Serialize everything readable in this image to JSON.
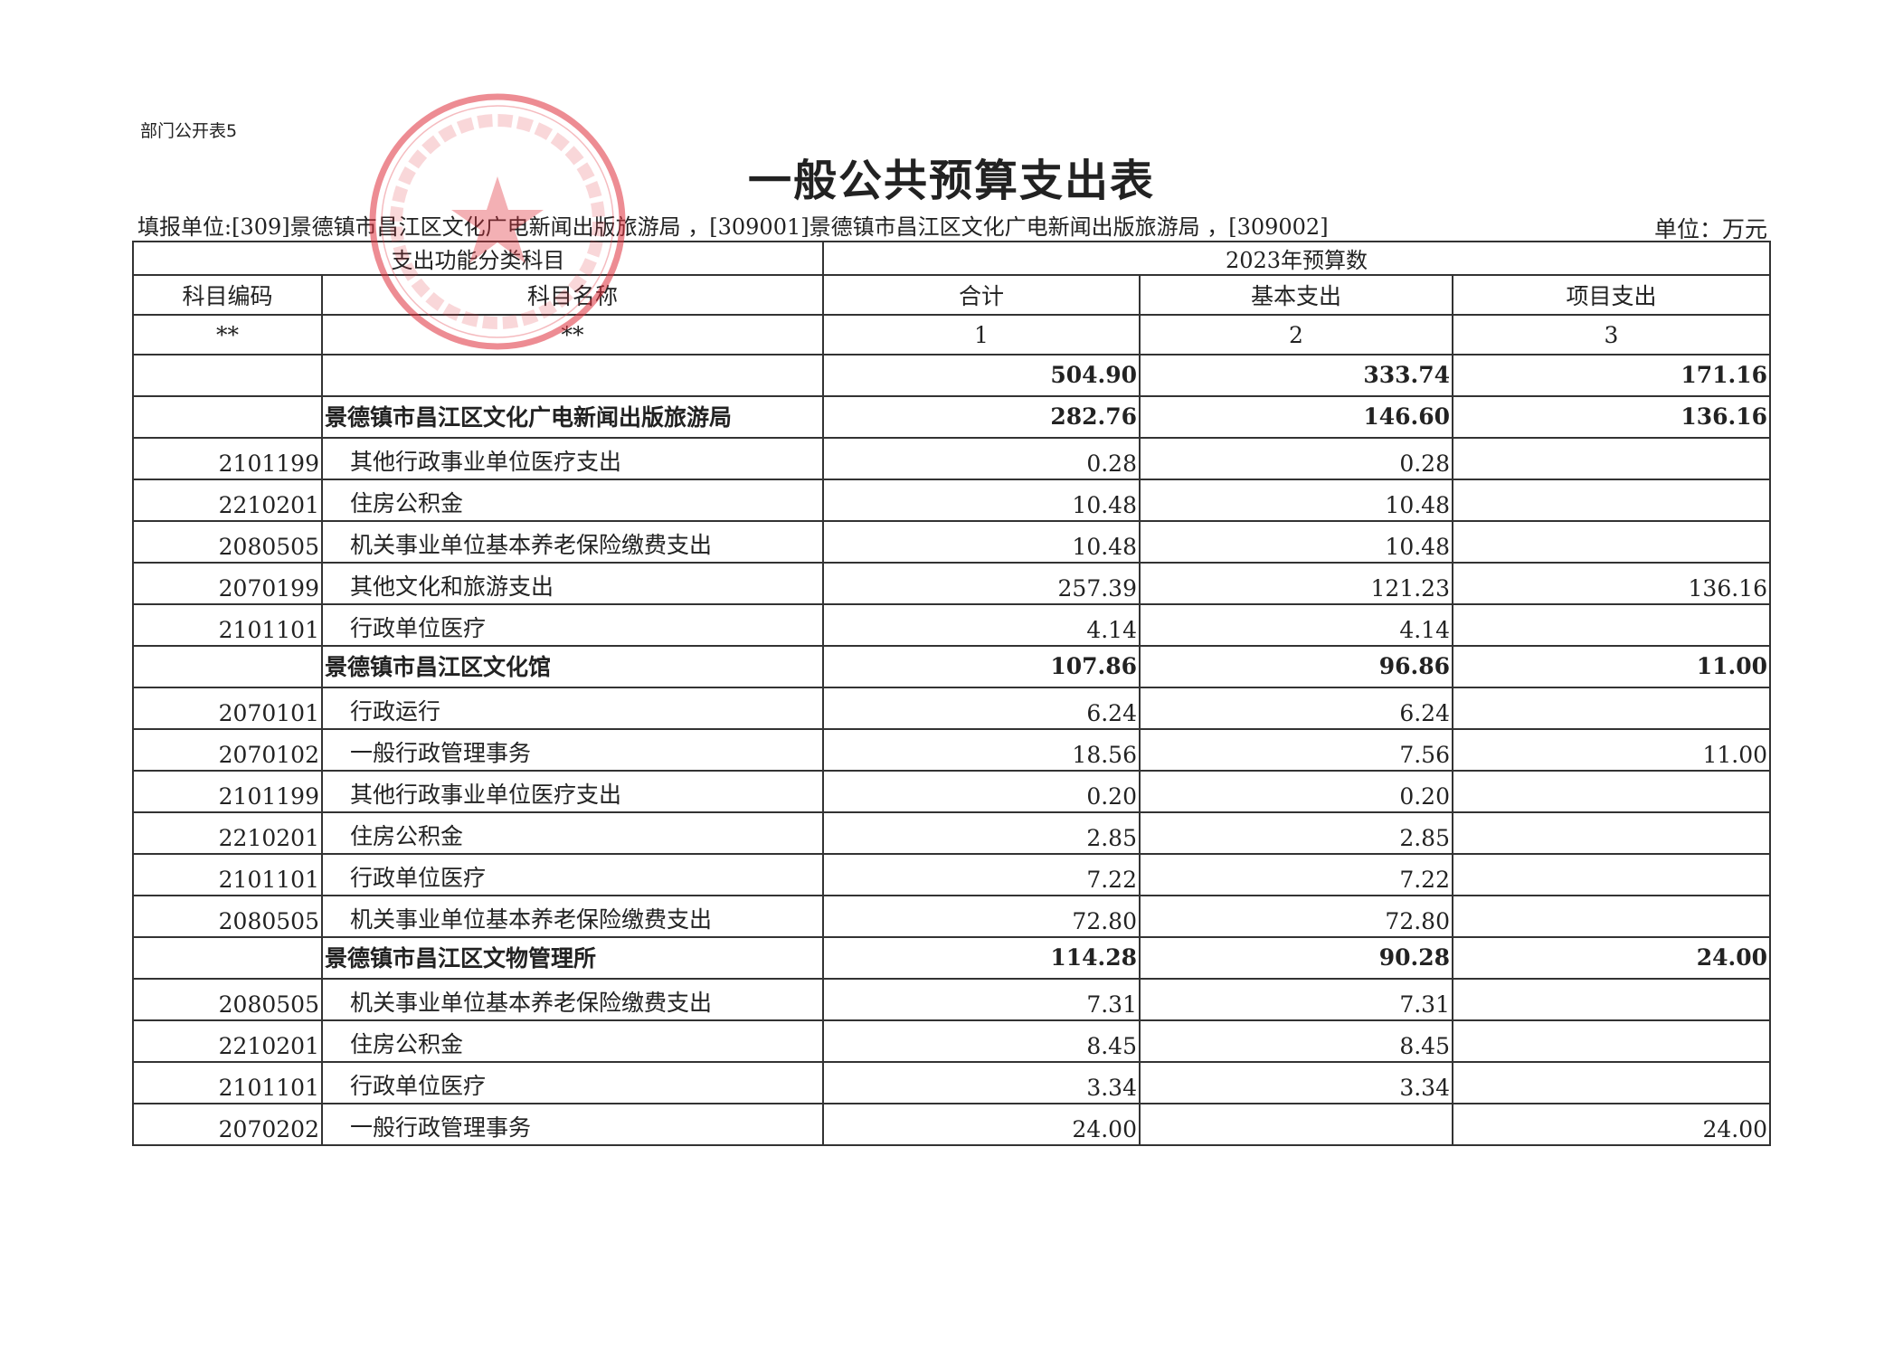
{
  "form_no": "部门公开表5",
  "title": "一般公共预算支出表",
  "reporting_unit": "填报单位:[309]景德镇市昌江区文化广电新闻出版旅游局 ，[309001]景德镇市昌江区文化广电新闻出版旅游局 ，[309002]",
  "unit": "单位：万元",
  "stamp": {
    "text": "景德镇市昌江区文化广电新闻出版旅游局",
    "number": "3602020910002096",
    "color": "#e0303c"
  },
  "header": {
    "group_left": "支出功能分类科目",
    "group_right": "2023年预算数",
    "code": "科目编码",
    "name": "科目名称",
    "total": "合计",
    "basic": "基本支出",
    "project": "项目支出",
    "idx_code": "**",
    "idx_name": "**",
    "idx_total": "1",
    "idx_basic": "2",
    "idx_project": "3"
  },
  "rows": [
    {
      "code": "",
      "name": "",
      "total": "504.90",
      "basic": "333.74",
      "project": "171.16",
      "bold": false,
      "summary": true
    },
    {
      "code": "",
      "name": "景德镇市昌江区文化广电新闻出版旅游局",
      "total": "282.76",
      "basic": "146.60",
      "project": "136.16",
      "bold": true
    },
    {
      "code": "2101199",
      "name": "其他行政事业单位医疗支出",
      "total": "0.28",
      "basic": "0.28",
      "project": ""
    },
    {
      "code": "2210201",
      "name": "住房公积金",
      "total": "10.48",
      "basic": "10.48",
      "project": ""
    },
    {
      "code": "2080505",
      "name": "机关事业单位基本养老保险缴费支出",
      "total": "10.48",
      "basic": "10.48",
      "project": ""
    },
    {
      "code": "2070199",
      "name": "其他文化和旅游支出",
      "total": "257.39",
      "basic": "121.23",
      "project": "136.16"
    },
    {
      "code": "2101101",
      "name": "行政单位医疗",
      "total": "4.14",
      "basic": "4.14",
      "project": ""
    },
    {
      "code": "",
      "name": "景德镇市昌江区文化馆",
      "total": "107.86",
      "basic": "96.86",
      "project": "11.00",
      "bold": true
    },
    {
      "code": "2070101",
      "name": "行政运行",
      "total": "6.24",
      "basic": "6.24",
      "project": ""
    },
    {
      "code": "2070102",
      "name": "一般行政管理事务",
      "total": "18.56",
      "basic": "7.56",
      "project": "11.00"
    },
    {
      "code": "2101199",
      "name": "其他行政事业单位医疗支出",
      "total": "0.20",
      "basic": "0.20",
      "project": ""
    },
    {
      "code": "2210201",
      "name": "住房公积金",
      "total": "2.85",
      "basic": "2.85",
      "project": ""
    },
    {
      "code": "2101101",
      "name": "行政单位医疗",
      "total": "7.22",
      "basic": "7.22",
      "project": ""
    },
    {
      "code": "2080505",
      "name": "机关事业单位基本养老保险缴费支出",
      "total": "72.80",
      "basic": "72.80",
      "project": ""
    },
    {
      "code": "",
      "name": "景德镇市昌江区文物管理所",
      "total": "114.28",
      "basic": "90.28",
      "project": "24.00",
      "bold": true
    },
    {
      "code": "2080505",
      "name": "机关事业单位基本养老保险缴费支出",
      "total": "7.31",
      "basic": "7.31",
      "project": ""
    },
    {
      "code": "2210201",
      "name": "住房公积金",
      "total": "8.45",
      "basic": "8.45",
      "project": ""
    },
    {
      "code": "2101101",
      "name": "行政单位医疗",
      "total": "3.34",
      "basic": "3.34",
      "project": ""
    },
    {
      "code": "2070202",
      "name": "一般行政管理事务",
      "total": "24.00",
      "basic": "",
      "project": "24.00"
    }
  ]
}
